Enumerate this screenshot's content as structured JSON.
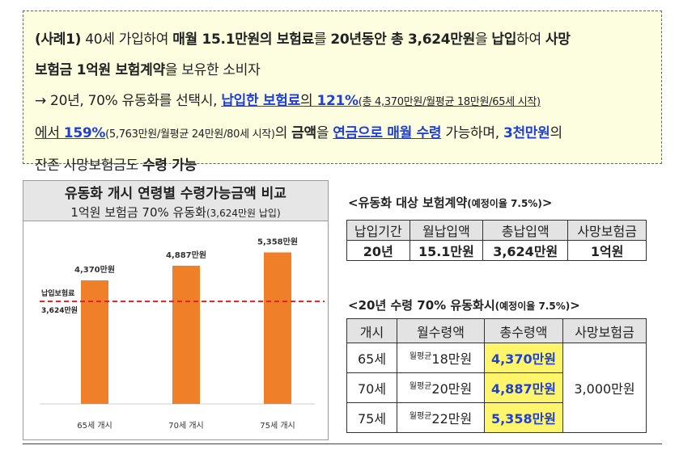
{
  "example": {
    "case_label": "(사례1)",
    "l1_a": " 40세 가입하여 ",
    "l1_b": "매월 15.1만원의 보험료",
    "l1_c": "를 ",
    "l1_d": "20년동안 총 3,624만원",
    "l1_e": "을 ",
    "l1_f": "납입",
    "l1_g": "하여 ",
    "l1_h": "사망",
    "l2_a": "보험금 1억원 보험계약",
    "l2_b": "을 보유한 소비자",
    "l3_a": "→ 20년, 70% 유동화를 선택시, ",
    "l3_b": "납입한 보험료",
    "l3_c": "의 ",
    "l3_d": "121%",
    "l3_e": "(총 4,370만원/월평균 18만원/65세 시작)",
    "l4_a": "에서 ",
    "l4_b": "159%",
    "l4_c": "(5,763만원/월평균 24만원/80세 시작)",
    "l4_d": "의 ",
    "l4_e": "금액",
    "l4_f": "을 ",
    "l4_g": "연금으로 매월 수령",
    "l4_h": " 가능하며, ",
    "l4_i": "3천만원",
    "l4_j": "의",
    "l5_a": "잔존 사망보험금도 ",
    "l5_b": "수령 가능"
  },
  "chart_panel": {
    "title": "유동화 개시 연령별 수령가능금액 비교",
    "subtitle": "1억원 보험금 70% 유동화",
    "subtitle_small": "(3,624만원 납입)"
  },
  "chart_data": {
    "type": "bar",
    "categories": [
      "65세 개시",
      "70세 개시",
      "75세 개시"
    ],
    "values": [
      4370,
      4887,
      5358
    ],
    "value_labels": [
      "4,370만원",
      "4,887만원",
      "5,358만원"
    ],
    "reference_line": {
      "value": 3624,
      "label_line1": "납입보험료",
      "label_line2": "3,624만원",
      "color": "#e02020"
    },
    "bar_color": "#f07f2a",
    "ylim": [
      0,
      6000
    ],
    "title": "",
    "xlabel": "",
    "ylabel": "",
    "grid": false
  },
  "table1": {
    "title": "<유동화 대상 보험계약",
    "title_small": "(예정이율 7.5%)",
    "title_end": ">",
    "headers": [
      "납입기간",
      "월납입액",
      "총납입액",
      "사망보험금"
    ],
    "row": [
      "20년",
      "15.1만원",
      "3,624만원",
      "1억원"
    ]
  },
  "table2": {
    "title": "<20년 수령 70% 유동화시",
    "title_small": "(예정이율 7.5%)",
    "title_end": ">",
    "headers": [
      "개시",
      "월수령액",
      "총수령액",
      "사망보험금"
    ],
    "monthly_prefix": "월평균",
    "rows": [
      {
        "age": "65세",
        "monthly": "18만원",
        "total": "4,370만원"
      },
      {
        "age": "70세",
        "monthly": "20만원",
        "total": "4,887만원"
      },
      {
        "age": "75세",
        "monthly": "22만원",
        "total": "5,358만원"
      }
    ],
    "death_benefit": "3,000만원"
  }
}
